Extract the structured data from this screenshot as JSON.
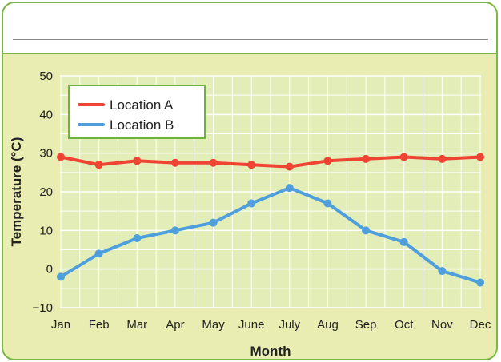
{
  "chart_data": {
    "type": "line",
    "categories": [
      "Jan",
      "Feb",
      "Mar",
      "Apr",
      "May",
      "June",
      "July",
      "Aug",
      "Sep",
      "Oct",
      "Nov",
      "Dec"
    ],
    "series": [
      {
        "name": "Location A",
        "color": "#ef4433",
        "values": [
          29,
          27,
          28,
          27.5,
          27.5,
          27,
          26.5,
          28,
          28.5,
          29,
          28.5,
          29
        ]
      },
      {
        "name": "Location B",
        "color": "#4e9fdc",
        "values": [
          -2,
          4,
          8,
          10,
          12,
          17,
          21,
          17,
          10,
          7,
          -0.5,
          -3.5
        ]
      }
    ],
    "xlabel": "Month",
    "ylabel": "Temperature (°C)",
    "ylim": [
      -10,
      50
    ],
    "yticks": [
      -10,
      0,
      10,
      20,
      30,
      40,
      50
    ],
    "grid": true,
    "legend": "top-left"
  },
  "colors": {
    "plot_background": "#e3edb8",
    "grid": "#ffffff",
    "legend_border": "#6cb33f",
    "frame": "#7cb646"
  }
}
